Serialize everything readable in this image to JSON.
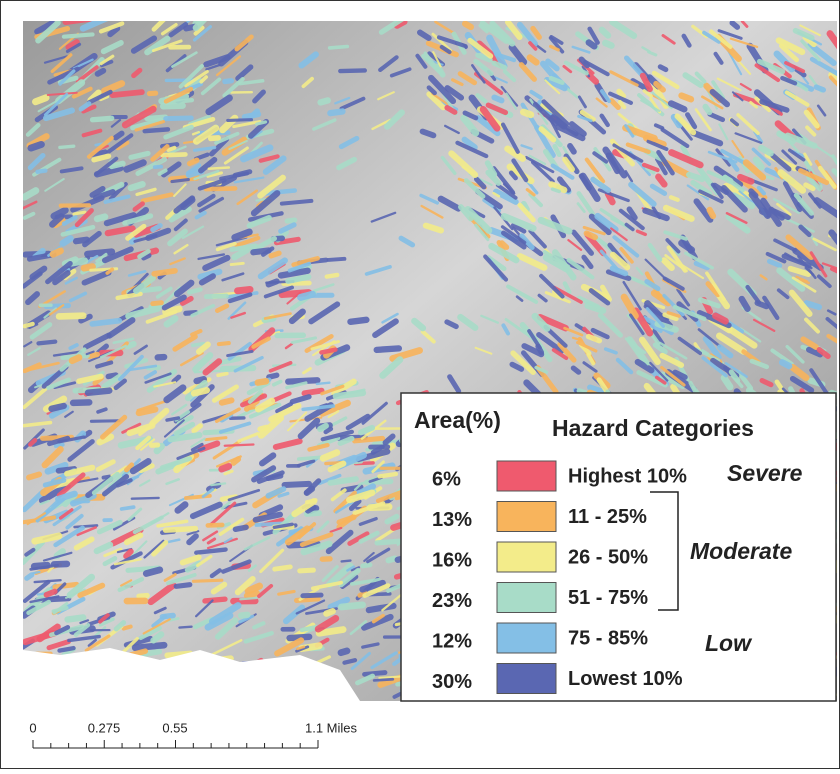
{
  "legend": {
    "area_header": "Area(%)",
    "category_header": "Hazard Categories",
    "items": [
      {
        "area": "6%",
        "label": "Highest 10%",
        "color": "#ef5a6e"
      },
      {
        "area": "13%",
        "label": "11 - 25%",
        "color": "#f8b45c"
      },
      {
        "area": "16%",
        "label": "26 - 50%",
        "color": "#f3ec8a"
      },
      {
        "area": "23%",
        "label": "51 - 75%",
        "color": "#a8dcc8"
      },
      {
        "area": "12%",
        "label": "75 - 85%",
        "color": "#84bfe6"
      },
      {
        "area": "30%",
        "label": "Lowest 10%",
        "color": "#5a67b2"
      }
    ],
    "groups": [
      "Severe",
      "Moderate",
      "Low"
    ]
  },
  "scale_bar": {
    "labels": [
      "0",
      "0.275",
      "0.55",
      "1.1 Miles"
    ]
  }
}
